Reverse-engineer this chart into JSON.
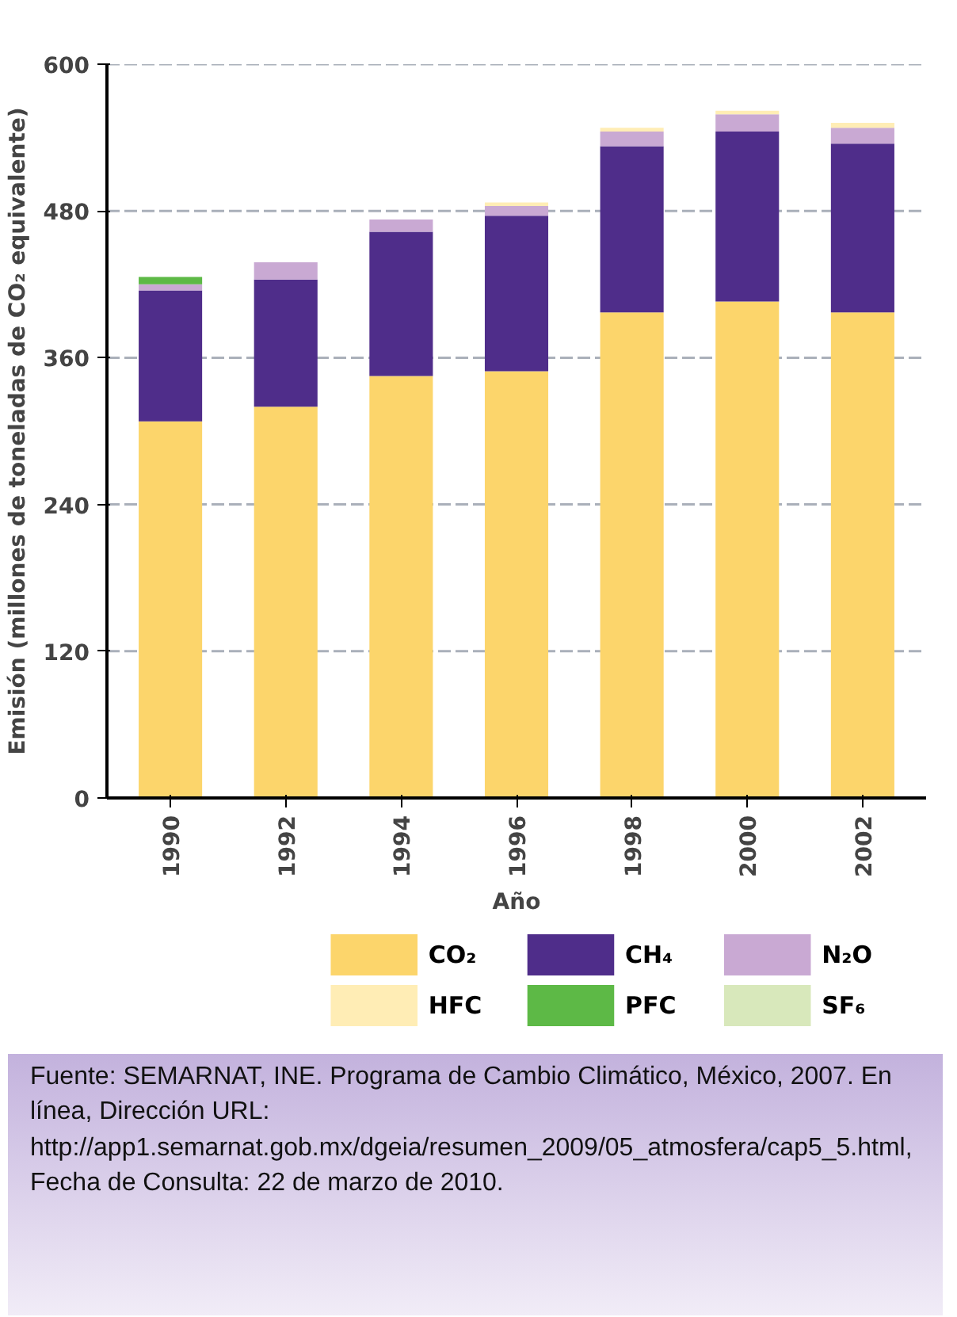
{
  "chart_data": {
    "type": "bar",
    "stacked": true,
    "xlabel": "Año",
    "ylabel": "Emisión (millones de toneladas de CO₂ equivalente)",
    "categories": [
      "1990",
      "1992",
      "1994",
      "1996",
      "1998",
      "2000",
      "2002"
    ],
    "series": [
      {
        "name": "CO₂",
        "color": "#fcd56b",
        "values": [
          308,
          320,
          345,
          349,
          397,
          406,
          397
        ]
      },
      {
        "name": "CH₄",
        "color": "#4f2d8a",
        "values": [
          107,
          104,
          118,
          127,
          136,
          139,
          138
        ]
      },
      {
        "name": "N₂O",
        "color": "#c9a9d3",
        "values": [
          5,
          14,
          10,
          8,
          12,
          14,
          13
        ]
      },
      {
        "name": "HFC",
        "color": "#ffedb5",
        "values": [
          0,
          0,
          0,
          3,
          3,
          3,
          4
        ]
      },
      {
        "name": "PFC",
        "color": "#5db946",
        "values": [
          6,
          0,
          0,
          0,
          0,
          0,
          0
        ]
      },
      {
        "name": "SF₆",
        "color": "#d8e8bb",
        "values": [
          0,
          0,
          0,
          0,
          0,
          0,
          0
        ]
      }
    ],
    "ylim": [
      0,
      600
    ],
    "yticks": [
      0,
      120,
      240,
      360,
      480,
      600
    ],
    "grid": "y",
    "legend": "bottom",
    "annotations": [
      "Fuente: SEMARNAT, INE.  Programa de Cambio Climático, México, 2007. En línea, Dirección URL: http://app1.semarnat.gob.mx/dgeia/resumen_2009/05_atmosfera/cap5_5.html, Fecha de Consulta: 22 de marzo de 2010."
    ]
  }
}
